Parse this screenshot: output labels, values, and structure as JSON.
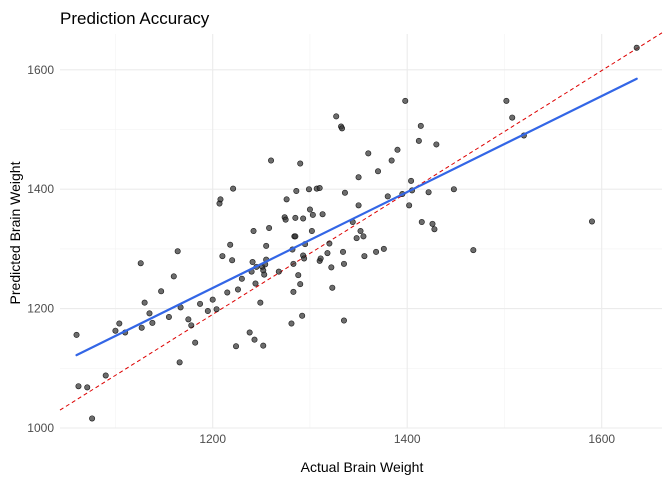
{
  "chart_data": {
    "type": "scatter",
    "title": "Prediction Accuracy",
    "xlabel": "Actual Brain Weight",
    "ylabel": "Predicted Brain Weight",
    "xlim": [
      1043,
      1662
    ],
    "ylim": [
      1000,
      1660
    ],
    "x_ticks": [
      1200,
      1400,
      1600
    ],
    "y_ticks": [
      1000,
      1200,
      1400,
      1600
    ],
    "x_tick_labels": [
      "1200",
      "1400",
      "1600"
    ],
    "y_tick_labels": [
      "1000",
      "1200",
      "1400",
      "1600"
    ],
    "grid": true,
    "colors": {
      "points": "#333333",
      "fit_line": "#3366e6",
      "reference_line": "#dd0000"
    },
    "series": [
      {
        "type": "scatter",
        "points": [
          [
            1060,
            1156
          ],
          [
            1062,
            1070
          ],
          [
            1071,
            1068
          ],
          [
            1076,
            1016
          ],
          [
            1090,
            1088
          ],
          [
            1100,
            1163
          ],
          [
            1104,
            1175
          ],
          [
            1110,
            1160
          ],
          [
            1126,
            1276
          ],
          [
            1127,
            1168
          ],
          [
            1130,
            1210
          ],
          [
            1135,
            1192
          ],
          [
            1138,
            1176
          ],
          [
            1147,
            1229
          ],
          [
            1155,
            1186
          ],
          [
            1160,
            1254
          ],
          [
            1164,
            1296
          ],
          [
            1166,
            1110
          ],
          [
            1167,
            1202
          ],
          [
            1175,
            1182
          ],
          [
            1178,
            1172
          ],
          [
            1182,
            1143
          ],
          [
            1187,
            1208
          ],
          [
            1195,
            1196
          ],
          [
            1200,
            1215
          ],
          [
            1204,
            1199
          ],
          [
            1207,
            1376
          ],
          [
            1208,
            1383
          ],
          [
            1210,
            1288
          ],
          [
            1215,
            1227
          ],
          [
            1218,
            1307
          ],
          [
            1220,
            1281
          ],
          [
            1221,
            1401
          ],
          [
            1224,
            1137
          ],
          [
            1226,
            1232
          ],
          [
            1230,
            1250
          ],
          [
            1238,
            1160
          ],
          [
            1240,
            1262
          ],
          [
            1241,
            1278
          ],
          [
            1242,
            1330
          ],
          [
            1243,
            1148
          ],
          [
            1244,
            1242
          ],
          [
            1245,
            1270
          ],
          [
            1249,
            1210
          ],
          [
            1251,
            1270
          ],
          [
            1252,
            1264
          ],
          [
            1252,
            1138
          ],
          [
            1253,
            1257
          ],
          [
            1254,
            1274
          ],
          [
            1255,
            1282
          ],
          [
            1255,
            1305
          ],
          [
            1258,
            1335
          ],
          [
            1260,
            1448
          ],
          [
            1268,
            1262
          ],
          [
            1274,
            1353
          ],
          [
            1275,
            1349
          ],
          [
            1276,
            1383
          ],
          [
            1281,
            1175
          ],
          [
            1282,
            1299
          ],
          [
            1283,
            1275
          ],
          [
            1283,
            1228
          ],
          [
            1284,
            1321
          ],
          [
            1285,
            1352
          ],
          [
            1285,
            1321
          ],
          [
            1286,
            1397
          ],
          [
            1288,
            1256
          ],
          [
            1290,
            1443
          ],
          [
            1290,
            1241
          ],
          [
            1292,
            1188
          ],
          [
            1293,
            1289
          ],
          [
            1293,
            1351
          ],
          [
            1294,
            1284
          ],
          [
            1295,
            1308
          ],
          [
            1299,
            1400
          ],
          [
            1300,
            1366
          ],
          [
            1302,
            1330
          ],
          [
            1303,
            1357
          ],
          [
            1307,
            1401
          ],
          [
            1310,
            1402
          ],
          [
            1310,
            1280
          ],
          [
            1311,
            1284
          ],
          [
            1313,
            1358
          ],
          [
            1318,
            1293
          ],
          [
            1320,
            1309
          ],
          [
            1322,
            1269
          ],
          [
            1323,
            1235
          ],
          [
            1327,
            1522
          ],
          [
            1332,
            1505
          ],
          [
            1333,
            1502
          ],
          [
            1334,
            1295
          ],
          [
            1335,
            1275
          ],
          [
            1335,
            1180
          ],
          [
            1336,
            1394
          ],
          [
            1344,
            1345
          ],
          [
            1348,
            1318
          ],
          [
            1350,
            1373
          ],
          [
            1350,
            1420
          ],
          [
            1352,
            1330
          ],
          [
            1355,
            1321
          ],
          [
            1356,
            1288
          ],
          [
            1360,
            1460
          ],
          [
            1368,
            1295
          ],
          [
            1370,
            1430
          ],
          [
            1376,
            1300
          ],
          [
            1380,
            1388
          ],
          [
            1384,
            1448
          ],
          [
            1390,
            1466
          ],
          [
            1395,
            1392
          ],
          [
            1398,
            1548
          ],
          [
            1402,
            1373
          ],
          [
            1404,
            1414
          ],
          [
            1405,
            1398
          ],
          [
            1412,
            1481
          ],
          [
            1414,
            1506
          ],
          [
            1415,
            1345
          ],
          [
            1422,
            1395
          ],
          [
            1426,
            1342
          ],
          [
            1428,
            1333
          ],
          [
            1430,
            1475
          ],
          [
            1448,
            1400
          ],
          [
            1468,
            1298
          ],
          [
            1502,
            1548
          ],
          [
            1508,
            1520
          ],
          [
            1520,
            1490
          ],
          [
            1590,
            1346
          ],
          [
            1636,
            1637
          ]
        ]
      },
      {
        "type": "line",
        "points": [
          [
            1060,
            1122
          ],
          [
            1636,
            1585
          ]
        ]
      },
      {
        "type": "line",
        "style": "dashed",
        "points": [
          [
            1043,
            1030
          ],
          [
            1662,
            1662
          ]
        ]
      }
    ]
  }
}
